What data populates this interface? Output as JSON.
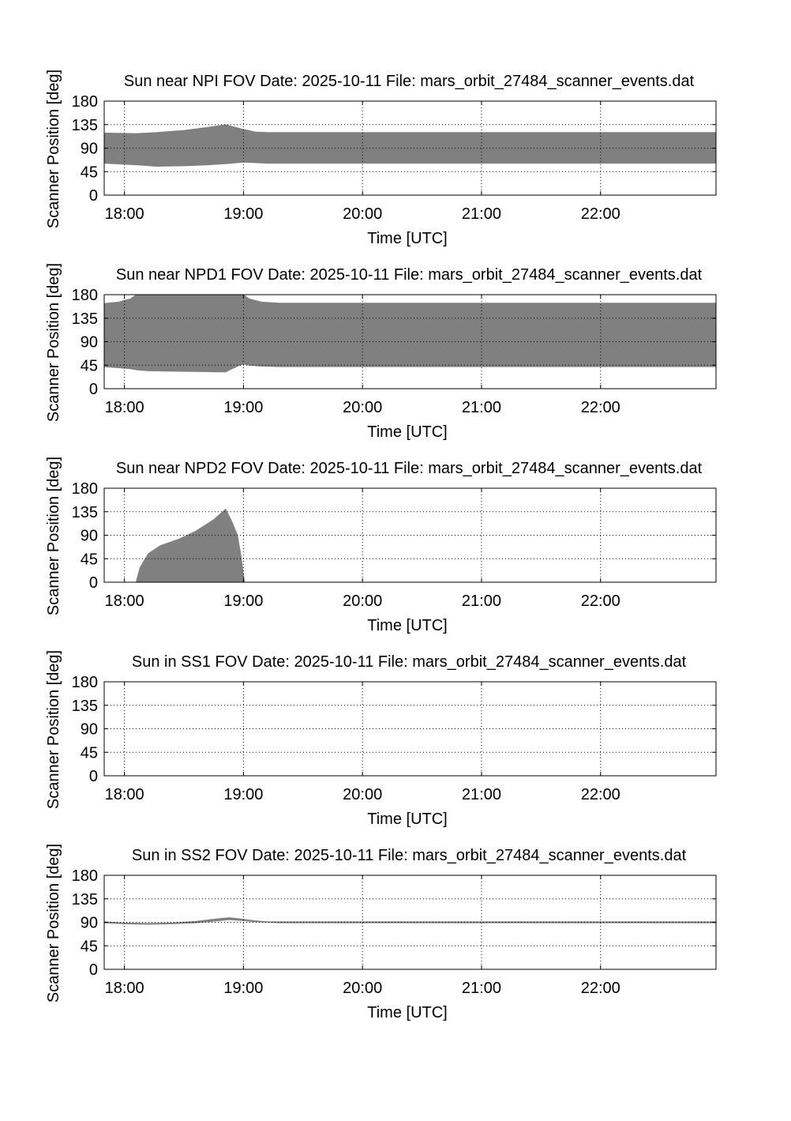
{
  "figure": {
    "x_axis_label": "Time [UTC]",
    "y_axis_label": "Scanner Position [deg]",
    "x_tick_labels": [
      "18:00",
      "19:00",
      "20:00",
      "21:00",
      "22:00"
    ],
    "y_tick_labels": [
      "0",
      "45",
      "90",
      "135",
      "180"
    ],
    "band_color": "#808080"
  },
  "chart_data": [
    {
      "type": "area",
      "title": "Sun near NPI FOV   Date: 2025-10-11   File: mars_orbit_27484_scanner_events.dat",
      "xlabel": "Time [UTC]",
      "ylabel": "Scanner Position [deg]",
      "x_unit": "hours UTC",
      "xlim": [
        17.83,
        22.97
      ],
      "ylim": [
        0,
        180
      ],
      "y_ticks": [
        0,
        45,
        90,
        135,
        180
      ],
      "grid": true,
      "series": [
        {
          "x": [
            17.83,
            18.1,
            18.27,
            18.5,
            18.7,
            18.85,
            19.0,
            19.1,
            19.2,
            19.4,
            20.0,
            21.0,
            22.0,
            22.97
          ],
          "low": [
            61,
            58,
            55,
            56,
            58,
            60,
            63,
            62,
            61,
            61,
            61,
            61,
            61,
            61
          ],
          "high": [
            119,
            118,
            120,
            124,
            130,
            135,
            126,
            121,
            120,
            120,
            120,
            120,
            120,
            120
          ]
        }
      ]
    },
    {
      "type": "area",
      "title": "Sun near NPD1 FOV   Date: 2025-10-11   File: mars_orbit_27484_scanner_events.dat",
      "xlabel": "Time [UTC]",
      "ylabel": "Scanner Position [deg]",
      "x_unit": "hours UTC",
      "xlim": [
        17.83,
        22.97
      ],
      "ylim": [
        0,
        180
      ],
      "y_ticks": [
        0,
        45,
        90,
        135,
        180
      ],
      "grid": true,
      "series": [
        {
          "x": [
            17.83,
            17.95,
            18.05,
            18.1,
            18.2,
            18.5,
            18.8,
            18.85,
            18.95,
            19.0,
            19.05,
            19.15,
            19.3,
            20.0,
            21.0,
            22.0,
            22.97
          ],
          "low": [
            42,
            40,
            38,
            36,
            34,
            33,
            32,
            32,
            43,
            47,
            45,
            43,
            42,
            42,
            42,
            42,
            42
          ],
          "high": [
            163,
            166,
            172,
            180,
            180,
            180,
            180,
            180,
            180,
            180,
            172,
            166,
            164,
            164,
            164,
            164,
            164
          ]
        }
      ]
    },
    {
      "type": "area",
      "title": "Sun near NPD2 FOV   Date: 2025-10-11   File: mars_orbit_27484_scanner_events.dat",
      "xlabel": "Time [UTC]",
      "ylabel": "Scanner Position [deg]",
      "x_unit": "hours UTC",
      "xlim": [
        17.83,
        22.97
      ],
      "ylim": [
        0,
        180
      ],
      "y_ticks": [
        0,
        45,
        90,
        135,
        180
      ],
      "grid": true,
      "series": [
        {
          "x": [
            18.1,
            18.13,
            18.2,
            18.3,
            18.45,
            18.6,
            18.75,
            18.85,
            18.9,
            18.95,
            18.98,
            19.0,
            19.01
          ],
          "low": [
            0,
            0,
            0,
            0,
            0,
            0,
            0,
            0,
            0,
            0,
            0,
            0,
            0
          ],
          "high": [
            2,
            28,
            55,
            70,
            82,
            98,
            120,
            140,
            118,
            90,
            50,
            15,
            0
          ]
        }
      ]
    },
    {
      "type": "area",
      "title": "Sun in SS1 FOV   Date: 2025-10-11   File: mars_orbit_27484_scanner_events.dat",
      "xlabel": "Time [UTC]",
      "ylabel": "Scanner Position [deg]",
      "x_unit": "hours UTC",
      "xlim": [
        17.83,
        22.97
      ],
      "ylim": [
        0,
        180
      ],
      "y_ticks": [
        0,
        45,
        90,
        135,
        180
      ],
      "grid": true,
      "series": []
    },
    {
      "type": "area",
      "title": "Sun in SS2 FOV   Date: 2025-10-11   File: mars_orbit_27484_scanner_events.dat",
      "xlabel": "Time [UTC]",
      "ylabel": "Scanner Position [deg]",
      "x_unit": "hours UTC",
      "xlim": [
        17.83,
        22.97
      ],
      "ylim": [
        0,
        180
      ],
      "y_ticks": [
        0,
        45,
        90,
        135,
        180
      ],
      "grid": true,
      "series": [
        {
          "x": [
            17.83,
            18.0,
            18.2,
            18.4,
            18.6,
            18.75,
            18.88,
            19.0,
            19.1,
            19.2,
            19.3,
            20.0,
            21.0,
            22.0,
            22.97
          ],
          "low": [
            89,
            87,
            86,
            87,
            89,
            92,
            95,
            93,
            91,
            90,
            89,
            89,
            89,
            89,
            89
          ],
          "high": [
            91,
            89,
            88,
            89,
            92,
            96,
            99,
            96,
            93,
            91,
            91,
            91,
            91,
            91,
            91
          ]
        }
      ]
    }
  ]
}
